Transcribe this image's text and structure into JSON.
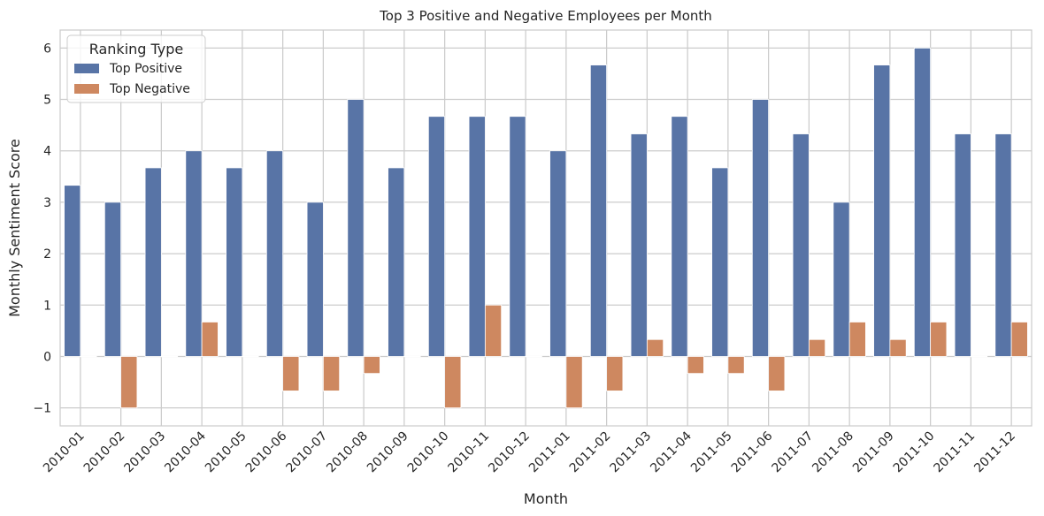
{
  "chart_data": {
    "type": "bar",
    "title": "Top 3 Positive and Negative Employees per Month",
    "xlabel": "Month",
    "ylabel": "Monthly Sentiment Score",
    "ylim": [
      -1.35,
      6.35
    ],
    "yticks": [
      -1,
      0,
      1,
      2,
      3,
      4,
      5,
      6
    ],
    "ytick_labels": [
      "−1",
      "0",
      "1",
      "2",
      "3",
      "4",
      "5",
      "6"
    ],
    "grid": true,
    "legend": {
      "title": "Ranking Type",
      "placement": "top-left"
    },
    "categories": [
      "2010-01",
      "2010-02",
      "2010-03",
      "2010-04",
      "2010-05",
      "2010-06",
      "2010-07",
      "2010-08",
      "2010-09",
      "2010-10",
      "2010-11",
      "2010-12",
      "2011-01",
      "2011-02",
      "2011-03",
      "2011-04",
      "2011-05",
      "2011-06",
      "2011-07",
      "2011-08",
      "2011-09",
      "2011-10",
      "2011-11",
      "2011-12"
    ],
    "series": [
      {
        "name": "Top Positive",
        "color": "#5874a6",
        "values": [
          3.33,
          3.0,
          3.67,
          4.0,
          3.67,
          4.0,
          3.0,
          5.0,
          3.67,
          4.67,
          4.67,
          4.67,
          4.0,
          5.67,
          4.33,
          4.67,
          3.67,
          5.0,
          4.33,
          3.0,
          5.67,
          6.0,
          4.33,
          4.33
        ]
      },
      {
        "name": "Top Negative",
        "color": "#ce8860",
        "values": [
          0,
          -1.0,
          0,
          0.67,
          0,
          -0.67,
          -0.67,
          -0.33,
          0,
          -1.0,
          1.0,
          0,
          -1.0,
          -0.67,
          0.33,
          -0.33,
          -0.33,
          -0.67,
          0.33,
          0.67,
          0.33,
          0.67,
          0,
          0.67
        ]
      }
    ]
  }
}
